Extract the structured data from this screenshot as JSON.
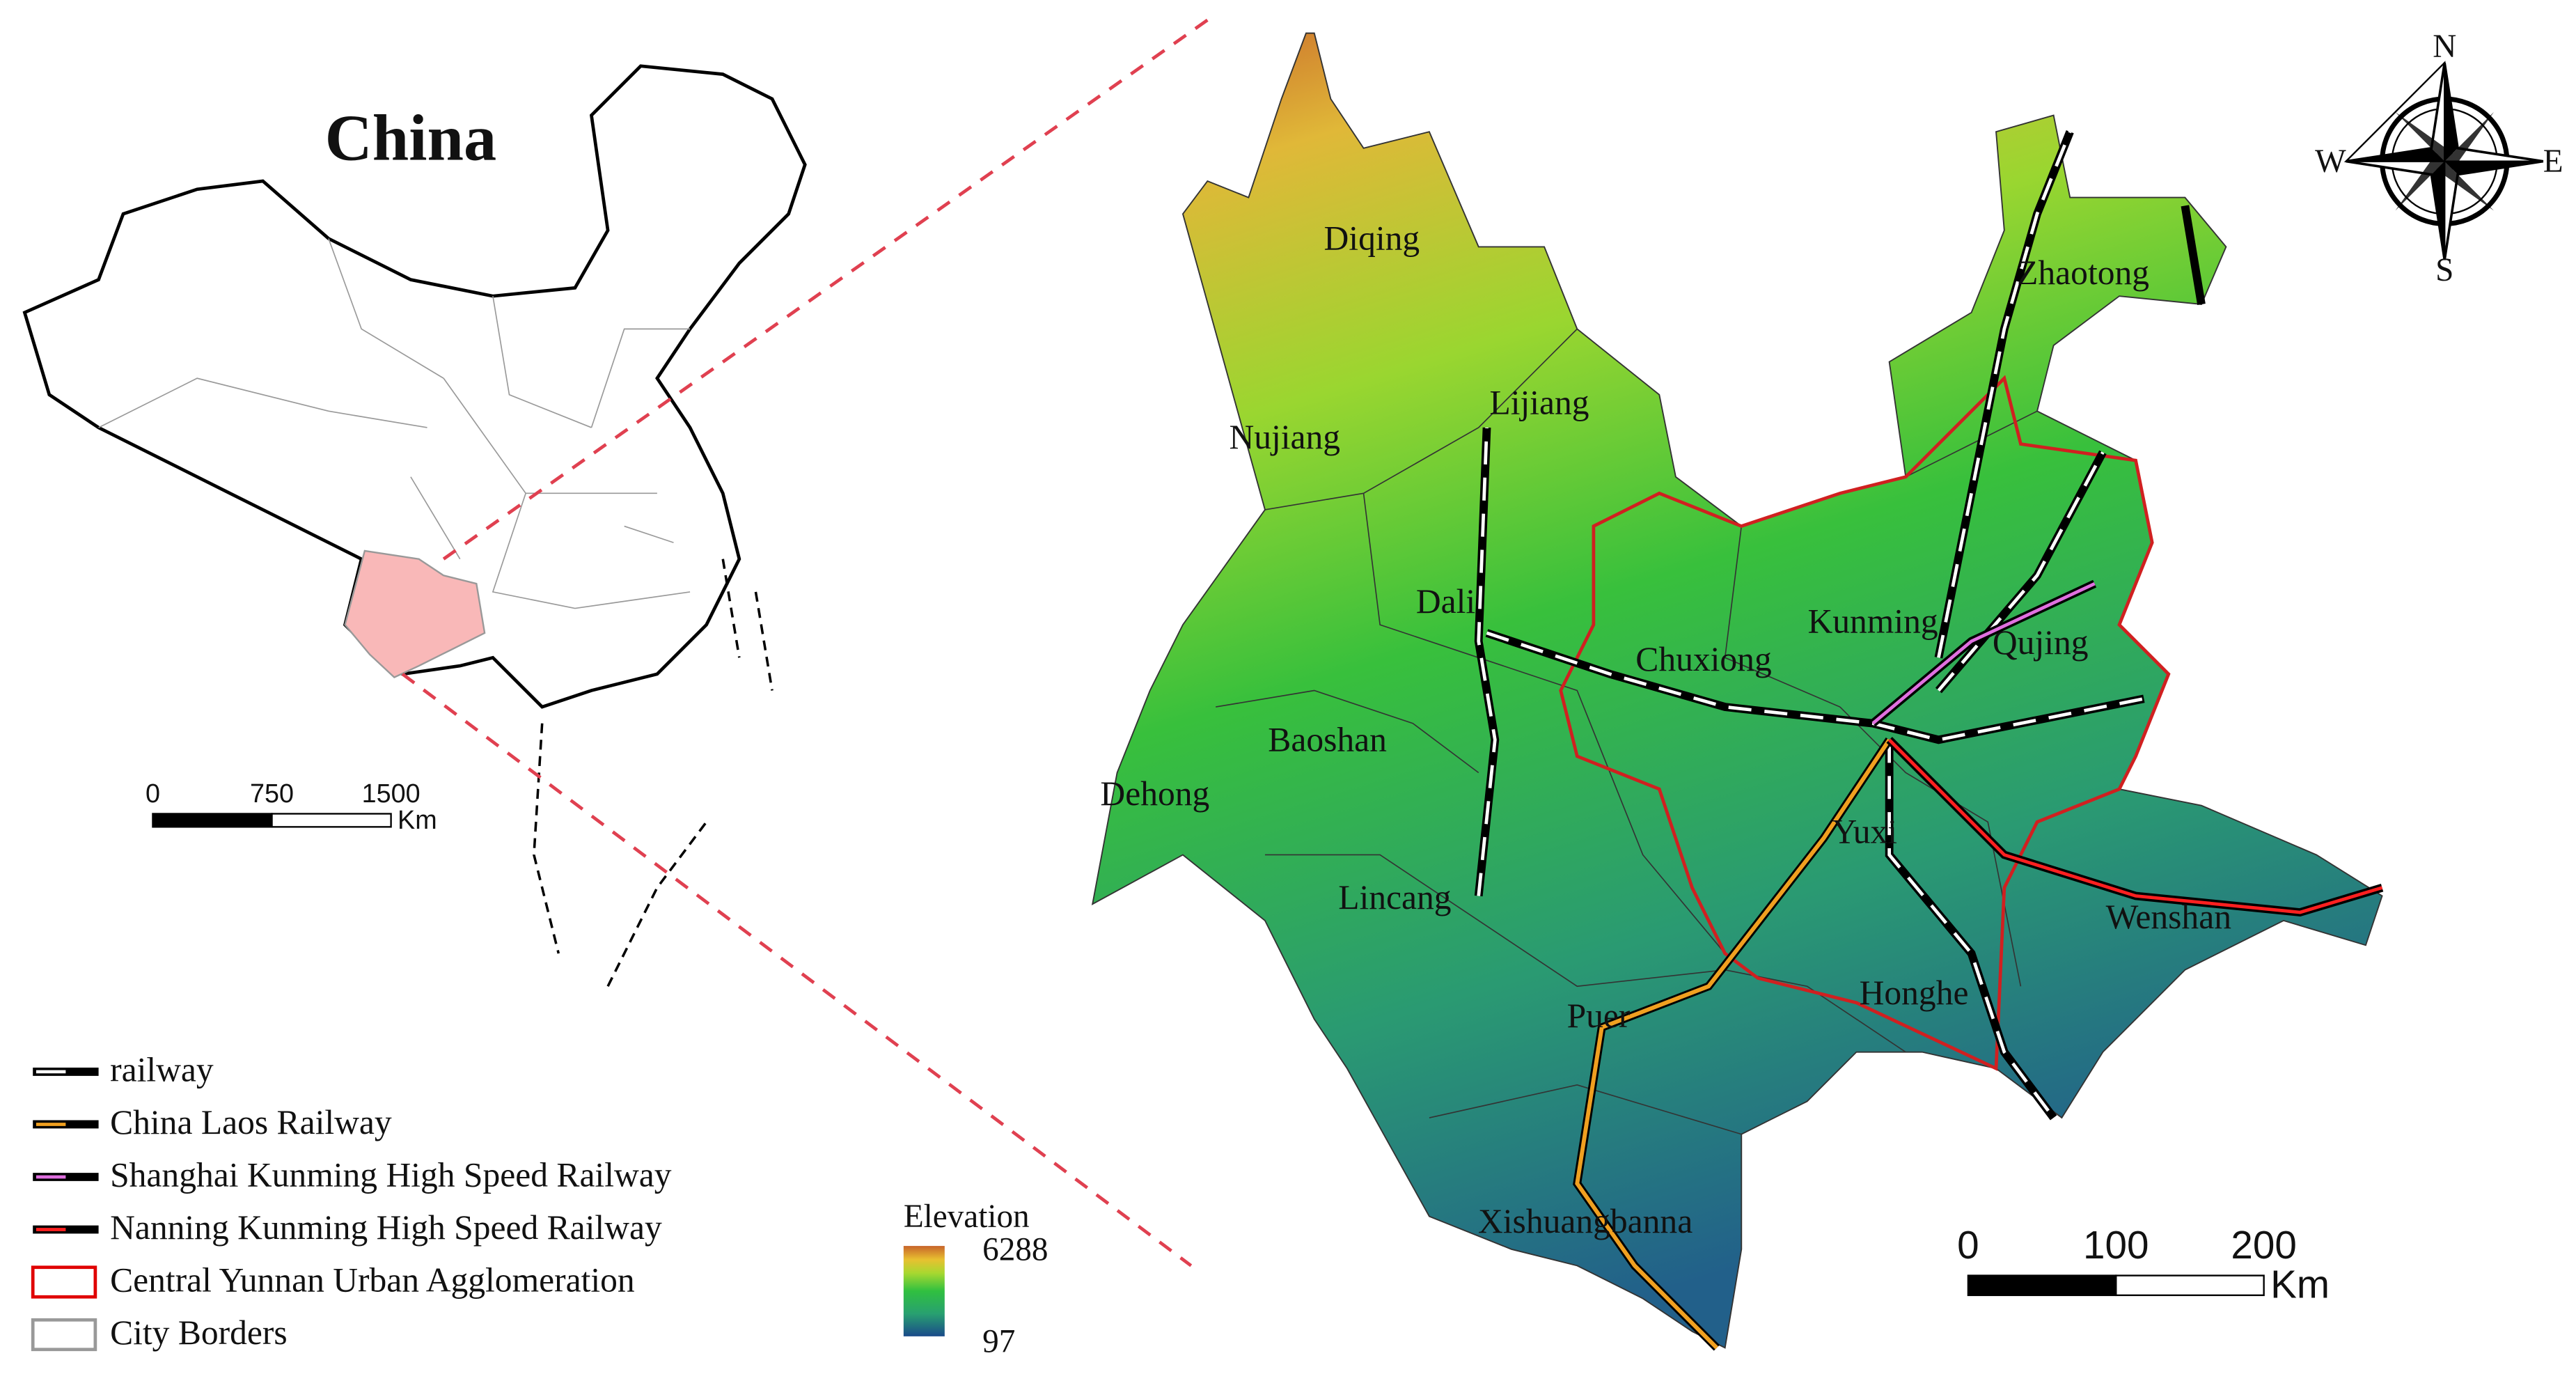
{
  "inset": {
    "title": "China",
    "scale_bar": {
      "ticks": [
        0,
        750,
        1500
      ],
      "unit": "Km"
    }
  },
  "compass": {
    "n": "N",
    "e": "E",
    "s": "S",
    "w": "W"
  },
  "cities": [
    "Diqing",
    "Lijiang",
    "Nujiang",
    "Dali",
    "Chuxiong",
    "Kunming",
    "Qujing",
    "Zhaotong",
    "Baoshan",
    "Dehong",
    "Lincang",
    "Yuxi",
    "Wenshan",
    "Puer",
    "Honghe",
    "Xishuangbanna"
  ],
  "legend": [
    "railway",
    "China Laos Railway",
    "Shanghai Kunming High Speed Railway",
    "Nanning Kunming High Speed Railway",
    "Central Yunnan Urban Agglomeration",
    "City Borders"
  ],
  "elevation": {
    "title": "Elevation",
    "max": 6288,
    "min": 97
  },
  "scale_bar": {
    "ticks": [
      0,
      100,
      200
    ],
    "unit": "Km"
  }
}
